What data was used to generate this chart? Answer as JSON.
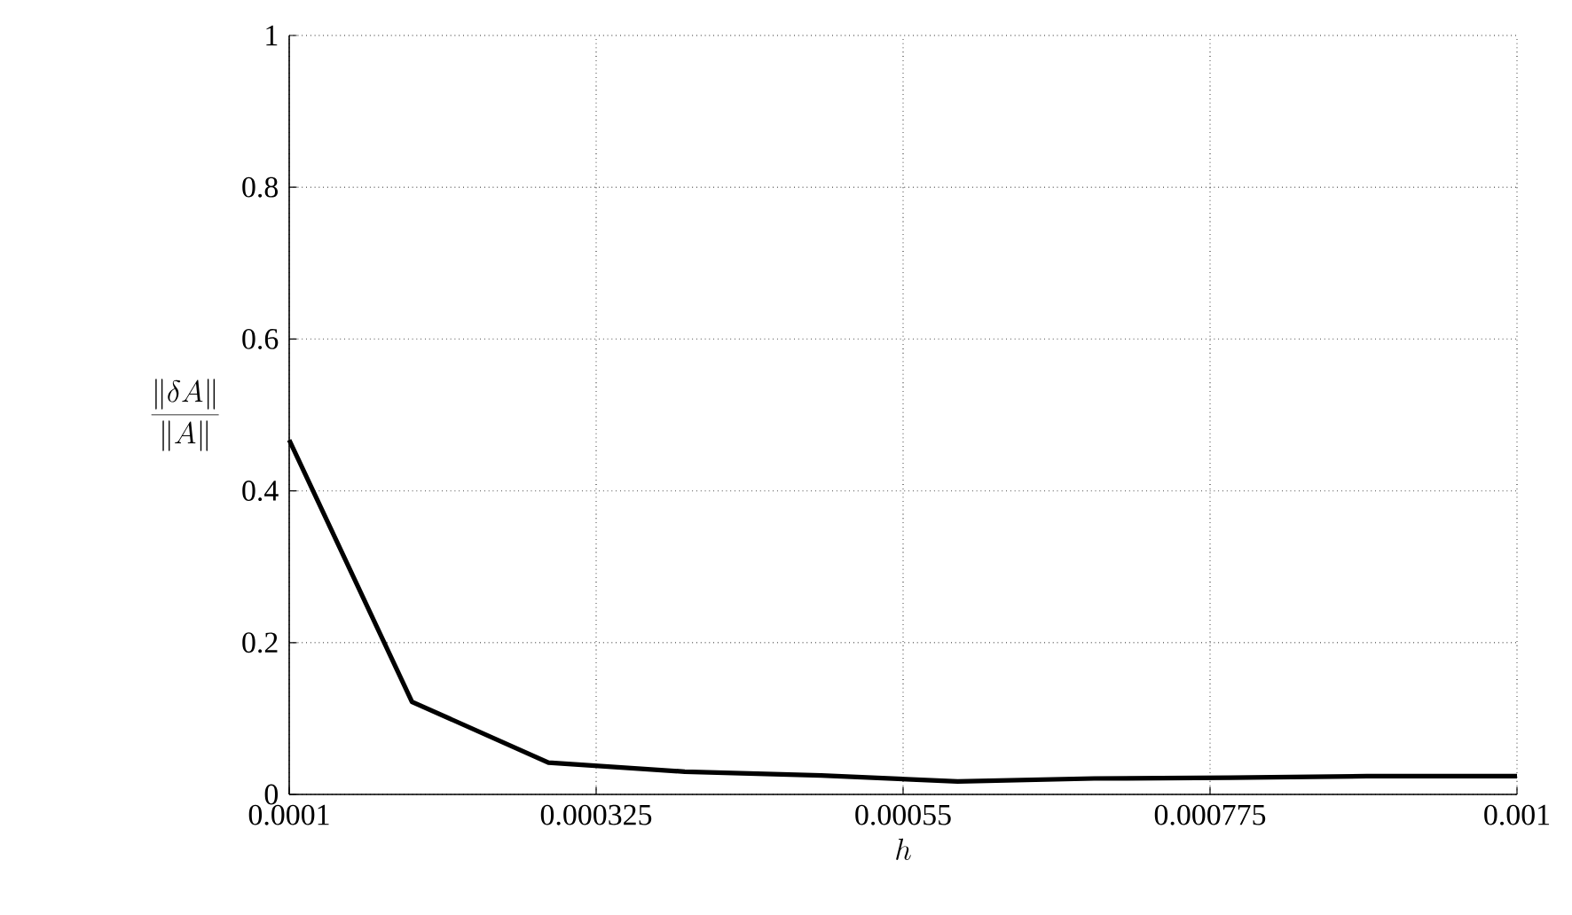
{
  "chart_data": {
    "type": "line",
    "xlabel": "h",
    "ylabel": "\\frac{\\|\\delta A\\|}{\\|A\\|}",
    "x": [
      0.0001,
      0.00019,
      0.00029,
      0.00039,
      0.00049,
      0.00059,
      0.00069,
      0.00079,
      0.00089,
      0.001
    ],
    "series": [
      {
        "color": "#000000",
        "values": [
          0.467,
          0.122,
          0.042,
          0.03,
          0.025,
          0.017,
          0.021,
          0.022,
          0.024,
          0.024
        ]
      }
    ],
    "xlim": [
      0.0001,
      0.001
    ],
    "ylim": [
      0,
      1
    ],
    "xticks": [
      0.0001,
      0.000325,
      0.00055,
      0.000775,
      0.001
    ],
    "yticks": [
      0,
      0.2,
      0.4,
      0.6,
      0.8,
      1
    ],
    "grid": true,
    "line_style": "solid",
    "marker": "none"
  }
}
